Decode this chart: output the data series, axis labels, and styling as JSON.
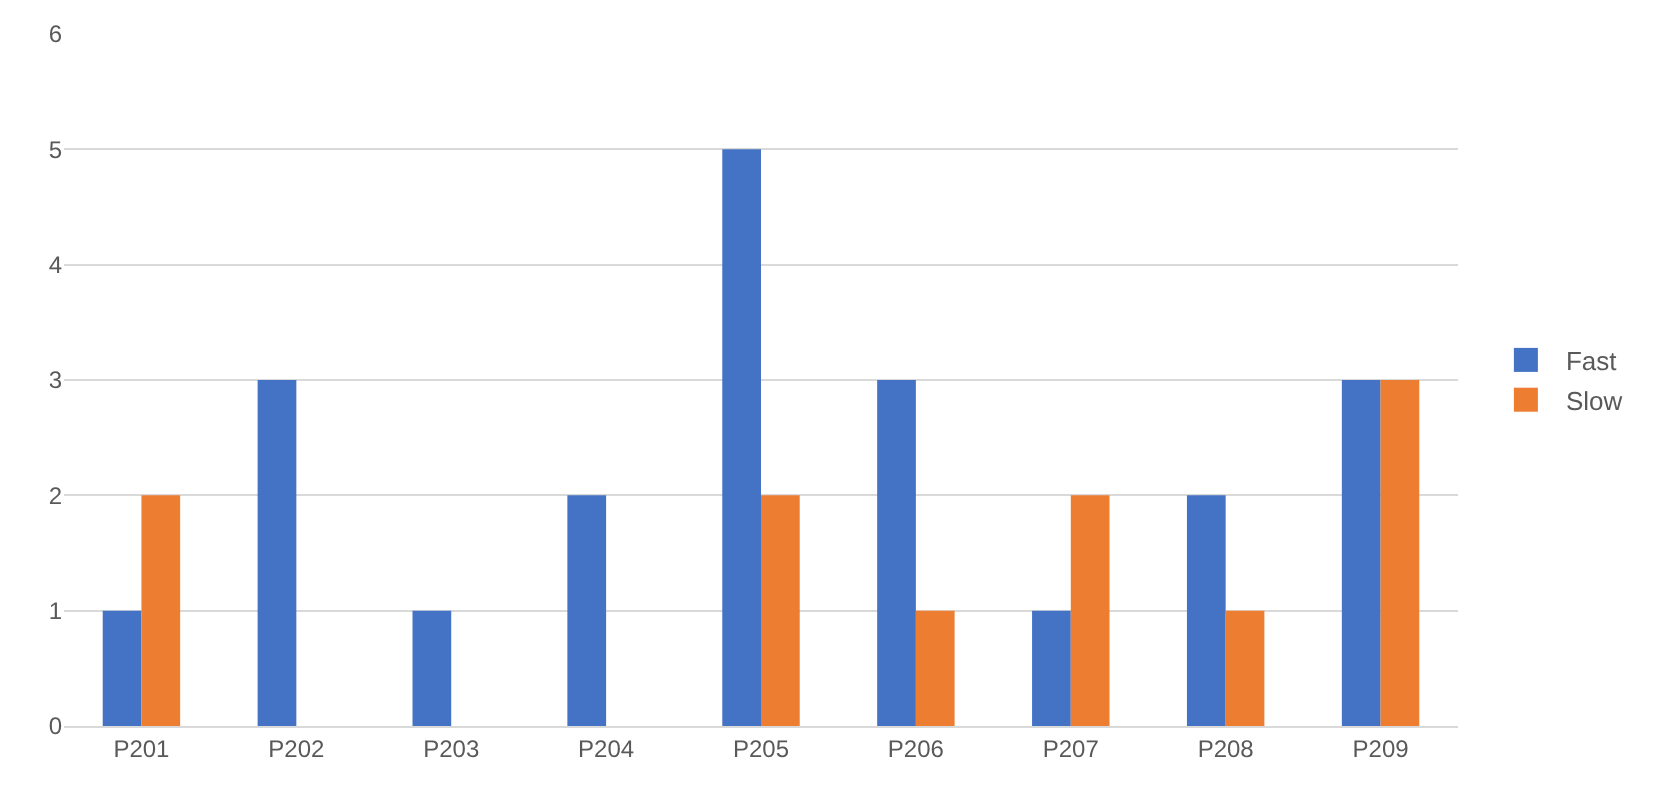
{
  "chart_data": {
    "type": "bar",
    "categories": [
      "P201",
      "P202",
      "P203",
      "P204",
      "P205",
      "P206",
      "P207",
      "P208",
      "P209"
    ],
    "series": [
      {
        "name": "Fast",
        "color": "#4472c4",
        "values": [
          1,
          3,
          1,
          2,
          5,
          3,
          1,
          2,
          3
        ]
      },
      {
        "name": "Slow",
        "color": "#ed7d31",
        "values": [
          2,
          0,
          0,
          0,
          2,
          1,
          2,
          1,
          3
        ]
      }
    ],
    "ylim": [
      0,
      6
    ],
    "yticks": [
      0,
      1,
      2,
      3,
      4,
      5,
      6
    ],
    "grid": "y",
    "legend": "right"
  }
}
